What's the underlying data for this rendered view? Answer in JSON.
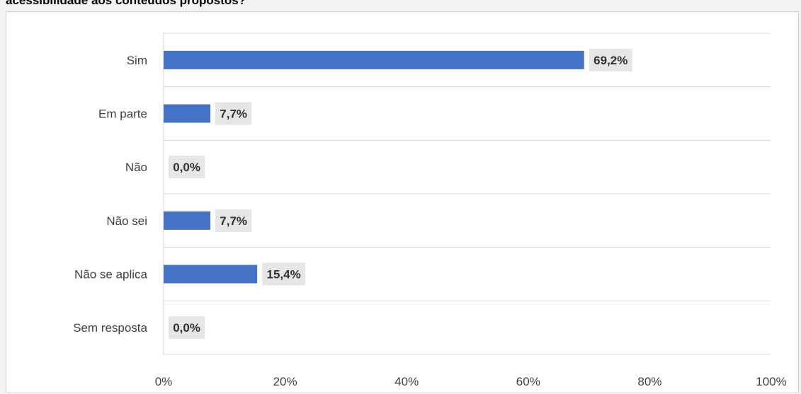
{
  "page": {
    "title": "acessibilidade aos conteúdos propostos?"
  },
  "chart_data": {
    "type": "bar",
    "orientation": "horizontal",
    "title": "acessibilidade aos conteúdos propostos?",
    "xlabel": "",
    "ylabel": "",
    "categories": [
      "Sim",
      "Em parte",
      "Não",
      "Não sei",
      "Não se aplica",
      "Sem resposta"
    ],
    "values": [
      69.2,
      7.7,
      0.0,
      7.7,
      15.4,
      0.0
    ],
    "data_labels": [
      "69,2%",
      "7,7%",
      "0,0%",
      "7,7%",
      "15,4%",
      "0,0%"
    ],
    "xlim": [
      0,
      100
    ],
    "x_ticks": [
      "0%",
      "20%",
      "40%",
      "60%",
      "80%",
      "100%"
    ],
    "grid": true,
    "legend": "none",
    "colors": {
      "bar": "#4472c4",
      "label_background": "#e7e6e6",
      "grid": "#d9d9d9"
    }
  }
}
